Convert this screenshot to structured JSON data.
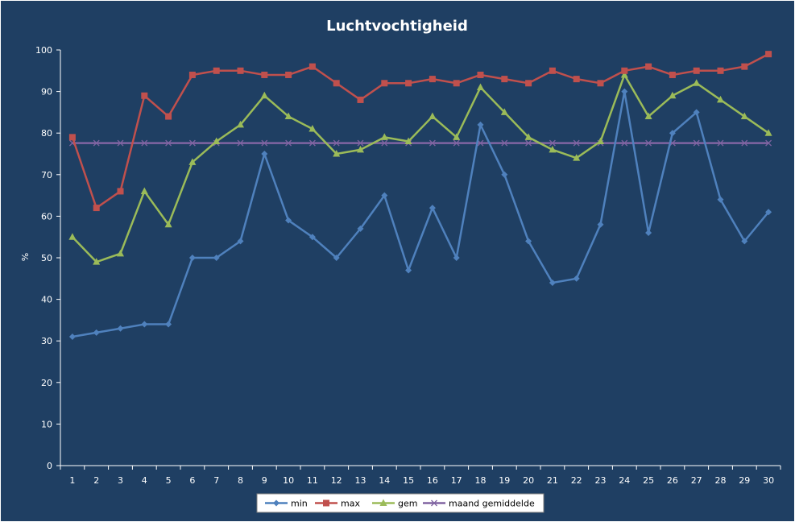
{
  "chart_data": {
    "type": "line",
    "title": "Luchtvochtigheid",
    "xlabel": "",
    "ylabel": "%",
    "ylim": [
      0,
      100
    ],
    "yticks": [
      0,
      10,
      20,
      30,
      40,
      50,
      60,
      70,
      80,
      90,
      100
    ],
    "x": [
      1,
      2,
      3,
      4,
      5,
      6,
      7,
      8,
      9,
      10,
      11,
      12,
      13,
      14,
      15,
      16,
      17,
      18,
      19,
      20,
      21,
      22,
      23,
      24,
      25,
      26,
      27,
      28,
      29,
      30
    ],
    "grid": false,
    "legend": "bottom",
    "series": [
      {
        "name": "min",
        "color": "#4f81bd",
        "marker": "diamond",
        "values": [
          31,
          32,
          33,
          34,
          34,
          50,
          50,
          54,
          75,
          59,
          55,
          50,
          57,
          65,
          47,
          62,
          50,
          82,
          70,
          54,
          44,
          45,
          58,
          90,
          56,
          80,
          85,
          64,
          54,
          61
        ]
      },
      {
        "name": "max",
        "color": "#c0504d",
        "marker": "square",
        "values": [
          79,
          62,
          66,
          89,
          84,
          94,
          95,
          95,
          94,
          94,
          96,
          92,
          88,
          92,
          92,
          93,
          92,
          94,
          93,
          92,
          95,
          93,
          92,
          95,
          96,
          94,
          95,
          95,
          96,
          99
        ]
      },
      {
        "name": "gem",
        "color": "#9bbb59",
        "marker": "triangle",
        "values": [
          55,
          49,
          51,
          66,
          58,
          73,
          78,
          82,
          89,
          84,
          81,
          75,
          76,
          79,
          78,
          84,
          79,
          91,
          85,
          79,
          76,
          74,
          78,
          94,
          84,
          89,
          92,
          88,
          84,
          80
        ]
      },
      {
        "name": "maand gemiddelde",
        "color": "#8064a2",
        "marker": "x",
        "values": [
          77.6,
          77.6,
          77.6,
          77.6,
          77.6,
          77.6,
          77.6,
          77.6,
          77.6,
          77.6,
          77.6,
          77.6,
          77.6,
          77.6,
          77.6,
          77.6,
          77.6,
          77.6,
          77.6,
          77.6,
          77.6,
          77.6,
          77.6,
          77.6,
          77.6,
          77.6,
          77.6,
          77.6,
          77.6,
          77.6
        ]
      }
    ]
  }
}
